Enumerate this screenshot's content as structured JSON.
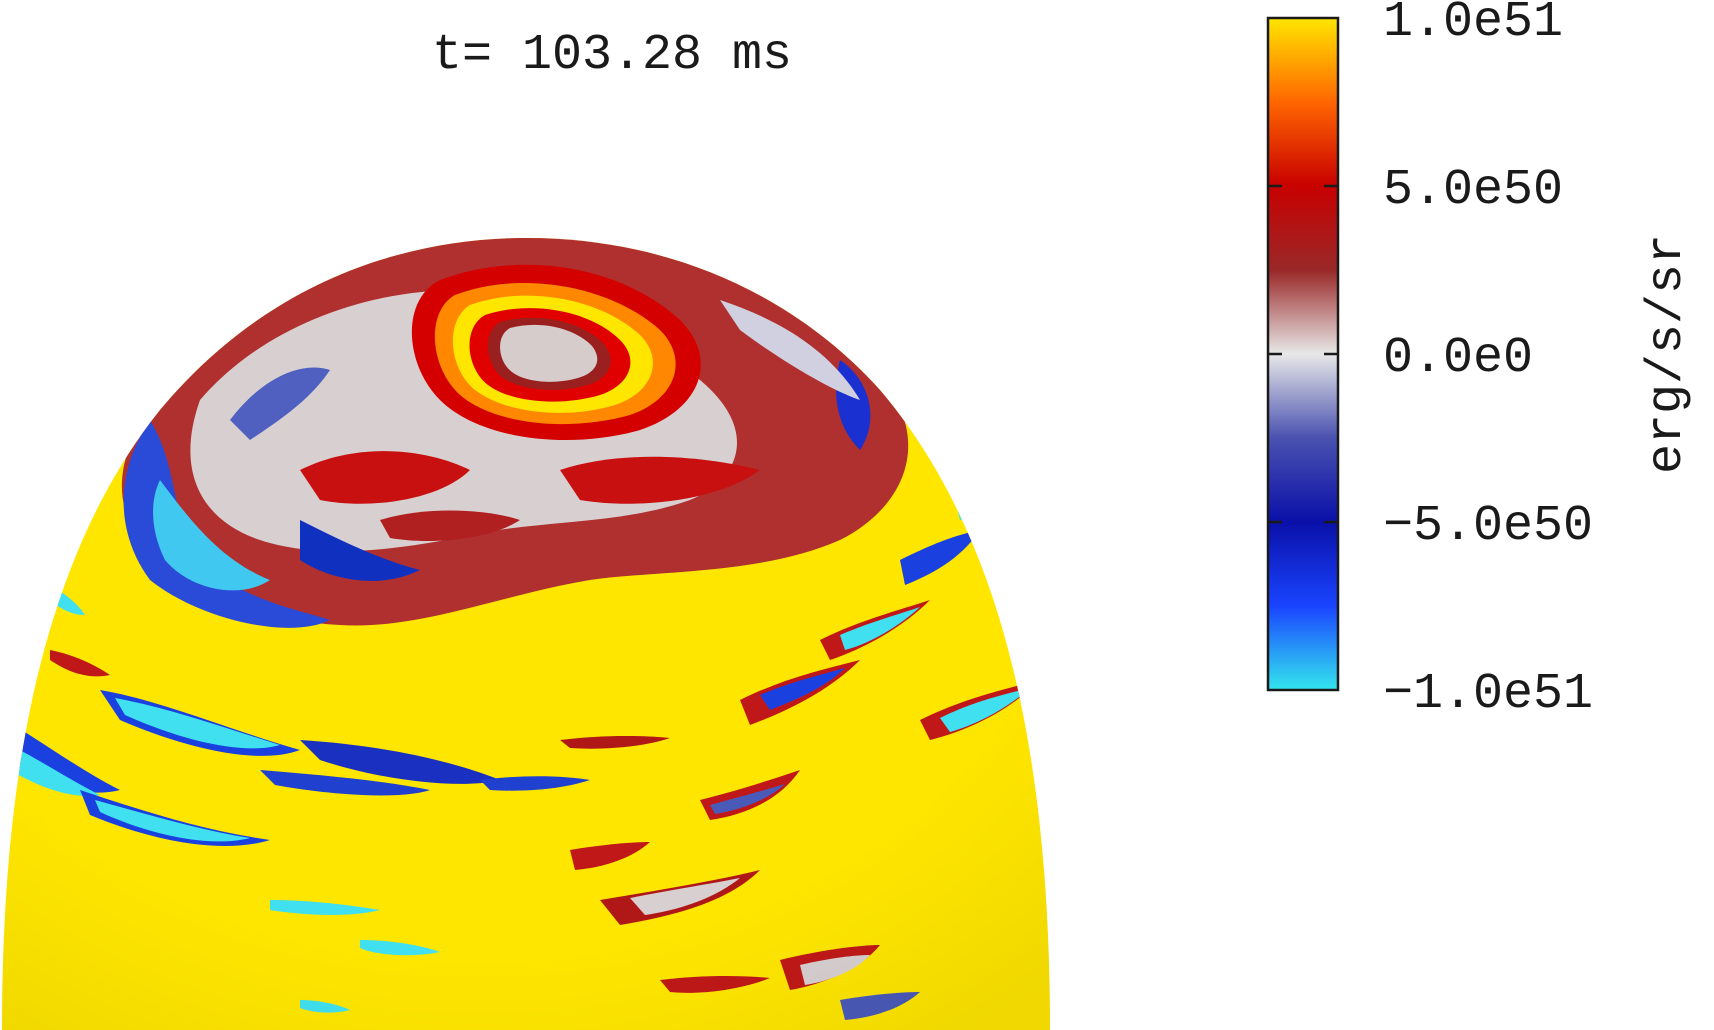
{
  "chart_data": {
    "type": "heatmap",
    "title": "t= 103.28 ms",
    "projection": "hemisphere",
    "colorbar": {
      "label": "erg/s/sr",
      "range": [
        -1e+51,
        1e+51
      ],
      "ticks": [
        {
          "value": 1e+51,
          "label": "1.0e51"
        },
        {
          "value": 5e+50,
          "label": "5.0e50"
        },
        {
          "value": 0,
          "label": "0.0e0"
        },
        {
          "value": -5e+50,
          "label": "−5.0e50"
        },
        {
          "value": -1e+51,
          "label": "−1.0e51"
        }
      ],
      "stops": [
        {
          "value": -1e+51,
          "color": "#33e6ee"
        },
        {
          "value": -7.5e+50,
          "color": "#1a44ff"
        },
        {
          "value": -5e+50,
          "color": "#0a10a8"
        },
        {
          "value": -2.5e+50,
          "color": "#4a52b0"
        },
        {
          "value": 0,
          "color": "#e8e8e8"
        },
        {
          "value": 2.5e+50,
          "color": "#9a2828"
        },
        {
          "value": 5e+50,
          "color": "#c80000"
        },
        {
          "value": 7.5e+50,
          "color": "#ff6600"
        },
        {
          "value": 1e+51,
          "color": "#ffe600"
        }
      ]
    }
  }
}
